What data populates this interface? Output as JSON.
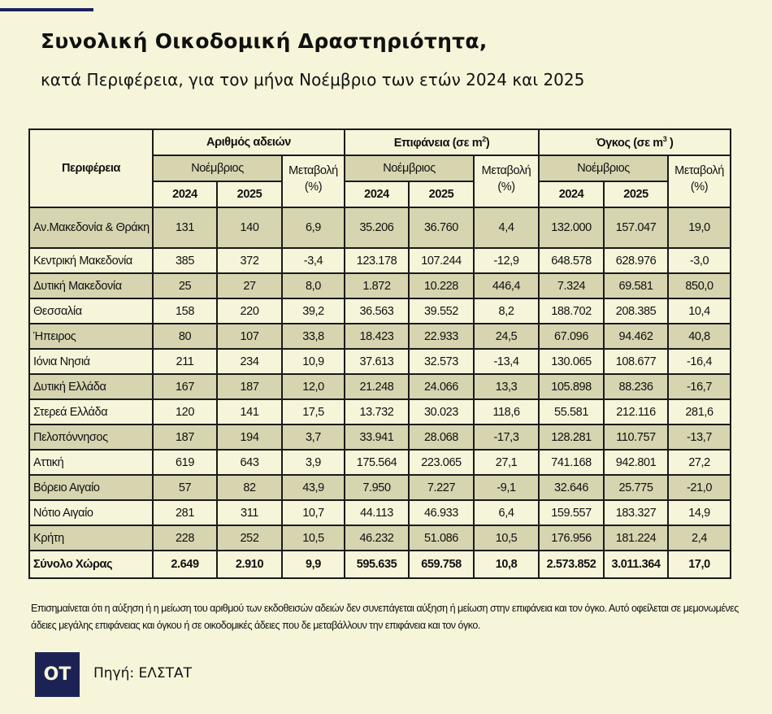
{
  "header": {
    "title": "Συνολική Οικοδομική Δραστηριότητα,",
    "subtitle": "κατά  Περιφέρεια, για τον μήνα Νοέμβριο των ετών 2024 και 2025"
  },
  "table": {
    "region_header": "Περιφέρεια",
    "groups": [
      {
        "label": "Αριθμός αδειών",
        "sup": ""
      },
      {
        "label": "Επιφάνεια (σε m",
        "sup": "2",
        "close": ")"
      },
      {
        "label": "Όγκος (σε m",
        "sup": "3",
        "close": " )"
      }
    ],
    "month_label": "Νοέμβριος",
    "change_label": "Μεταβολή (%)",
    "years": [
      "2024",
      "2025"
    ],
    "rows": [
      [
        "Αν.Μακεδονία & Θράκη",
        "131",
        "140",
        "6,9",
        "35.206",
        "36.760",
        "4,4",
        "132.000",
        "157.047",
        "19,0"
      ],
      [
        "Κεντρική Μακεδονία",
        "385",
        "372",
        "-3,4",
        "123.178",
        "107.244",
        "-12,9",
        "648.578",
        "628.976",
        "-3,0"
      ],
      [
        "Δυτική Μακεδονία",
        "25",
        "27",
        "8,0",
        "1.872",
        "10.228",
        "446,4",
        "7.324",
        "69.581",
        "850,0"
      ],
      [
        "Θεσσαλία",
        "158",
        "220",
        "39,2",
        "36.563",
        "39.552",
        "8,2",
        "188.702",
        "208.385",
        "10,4"
      ],
      [
        "Ήπειρος",
        "80",
        "107",
        "33,8",
        "18.423",
        "22.933",
        "24,5",
        "67.096",
        "94.462",
        "40,8"
      ],
      [
        "Ιόνια Νησιά",
        "211",
        "234",
        "10,9",
        "37.613",
        "32.573",
        "-13,4",
        "130.065",
        "108.677",
        "-16,4"
      ],
      [
        "Δυτική Ελλάδα",
        "167",
        "187",
        "12,0",
        "21.248",
        "24.066",
        "13,3",
        "105.898",
        "88.236",
        "-16,7"
      ],
      [
        "Στερεά Ελλάδα",
        "120",
        "141",
        "17,5",
        "13.732",
        "30.023",
        "118,6",
        "55.581",
        "212.116",
        "281,6"
      ],
      [
        "Πελοπόννησος",
        "187",
        "194",
        "3,7",
        "33.941",
        "28.068",
        "-17,3",
        "128.281",
        "110.757",
        "-13,7"
      ],
      [
        "Αττική",
        "619",
        "643",
        "3,9",
        "175.564",
        "223.065",
        "27,1",
        "741.168",
        "942.801",
        "27,2"
      ],
      [
        "Βόρειο Αιγαίο",
        "57",
        "82",
        "43,9",
        "7.950",
        "7.227",
        "-9,1",
        "32.646",
        "25.775",
        "-21,0"
      ],
      [
        "Νότιο Αιγαίο",
        "281",
        "311",
        "10,7",
        "44.113",
        "46.933",
        "6,4",
        "159.557",
        "183.327",
        "14,9"
      ],
      [
        "Κρήτη",
        "228",
        "252",
        "10,5",
        "46.232",
        "51.086",
        "10,5",
        "176.956",
        "181.224",
        "2,4"
      ]
    ],
    "total": [
      "Σύνολο Χώρας",
      "2.649",
      "2.910",
      "9,9",
      "595.635",
      "659.758",
      "10,8",
      "2.573.852",
      "3.011.364",
      "17,0"
    ]
  },
  "footer": {
    "note": "Επισημαίνεται ότι η αύξηση ή η μείωση του αριθμού των εκδοθεισών αδειών δεν συνεπάγεται αύξηση ή μείωση στην επιφάνεια και τον όγκο. Αυτό οφείλεται σε μεμονωμένες άδειες μεγάλης επιφάνειας και όγκου ή σε οικοδομικές άδειες που δε μεταβάλλουν την επιφάνεια και τον όγκο.",
    "logo": "OT",
    "source": "Πηγή: ΕΛΣΤΑΤ"
  },
  "colors": {
    "background": "#f6f5da",
    "shaded": "#d6d5b0",
    "brand": "#1c2354"
  }
}
